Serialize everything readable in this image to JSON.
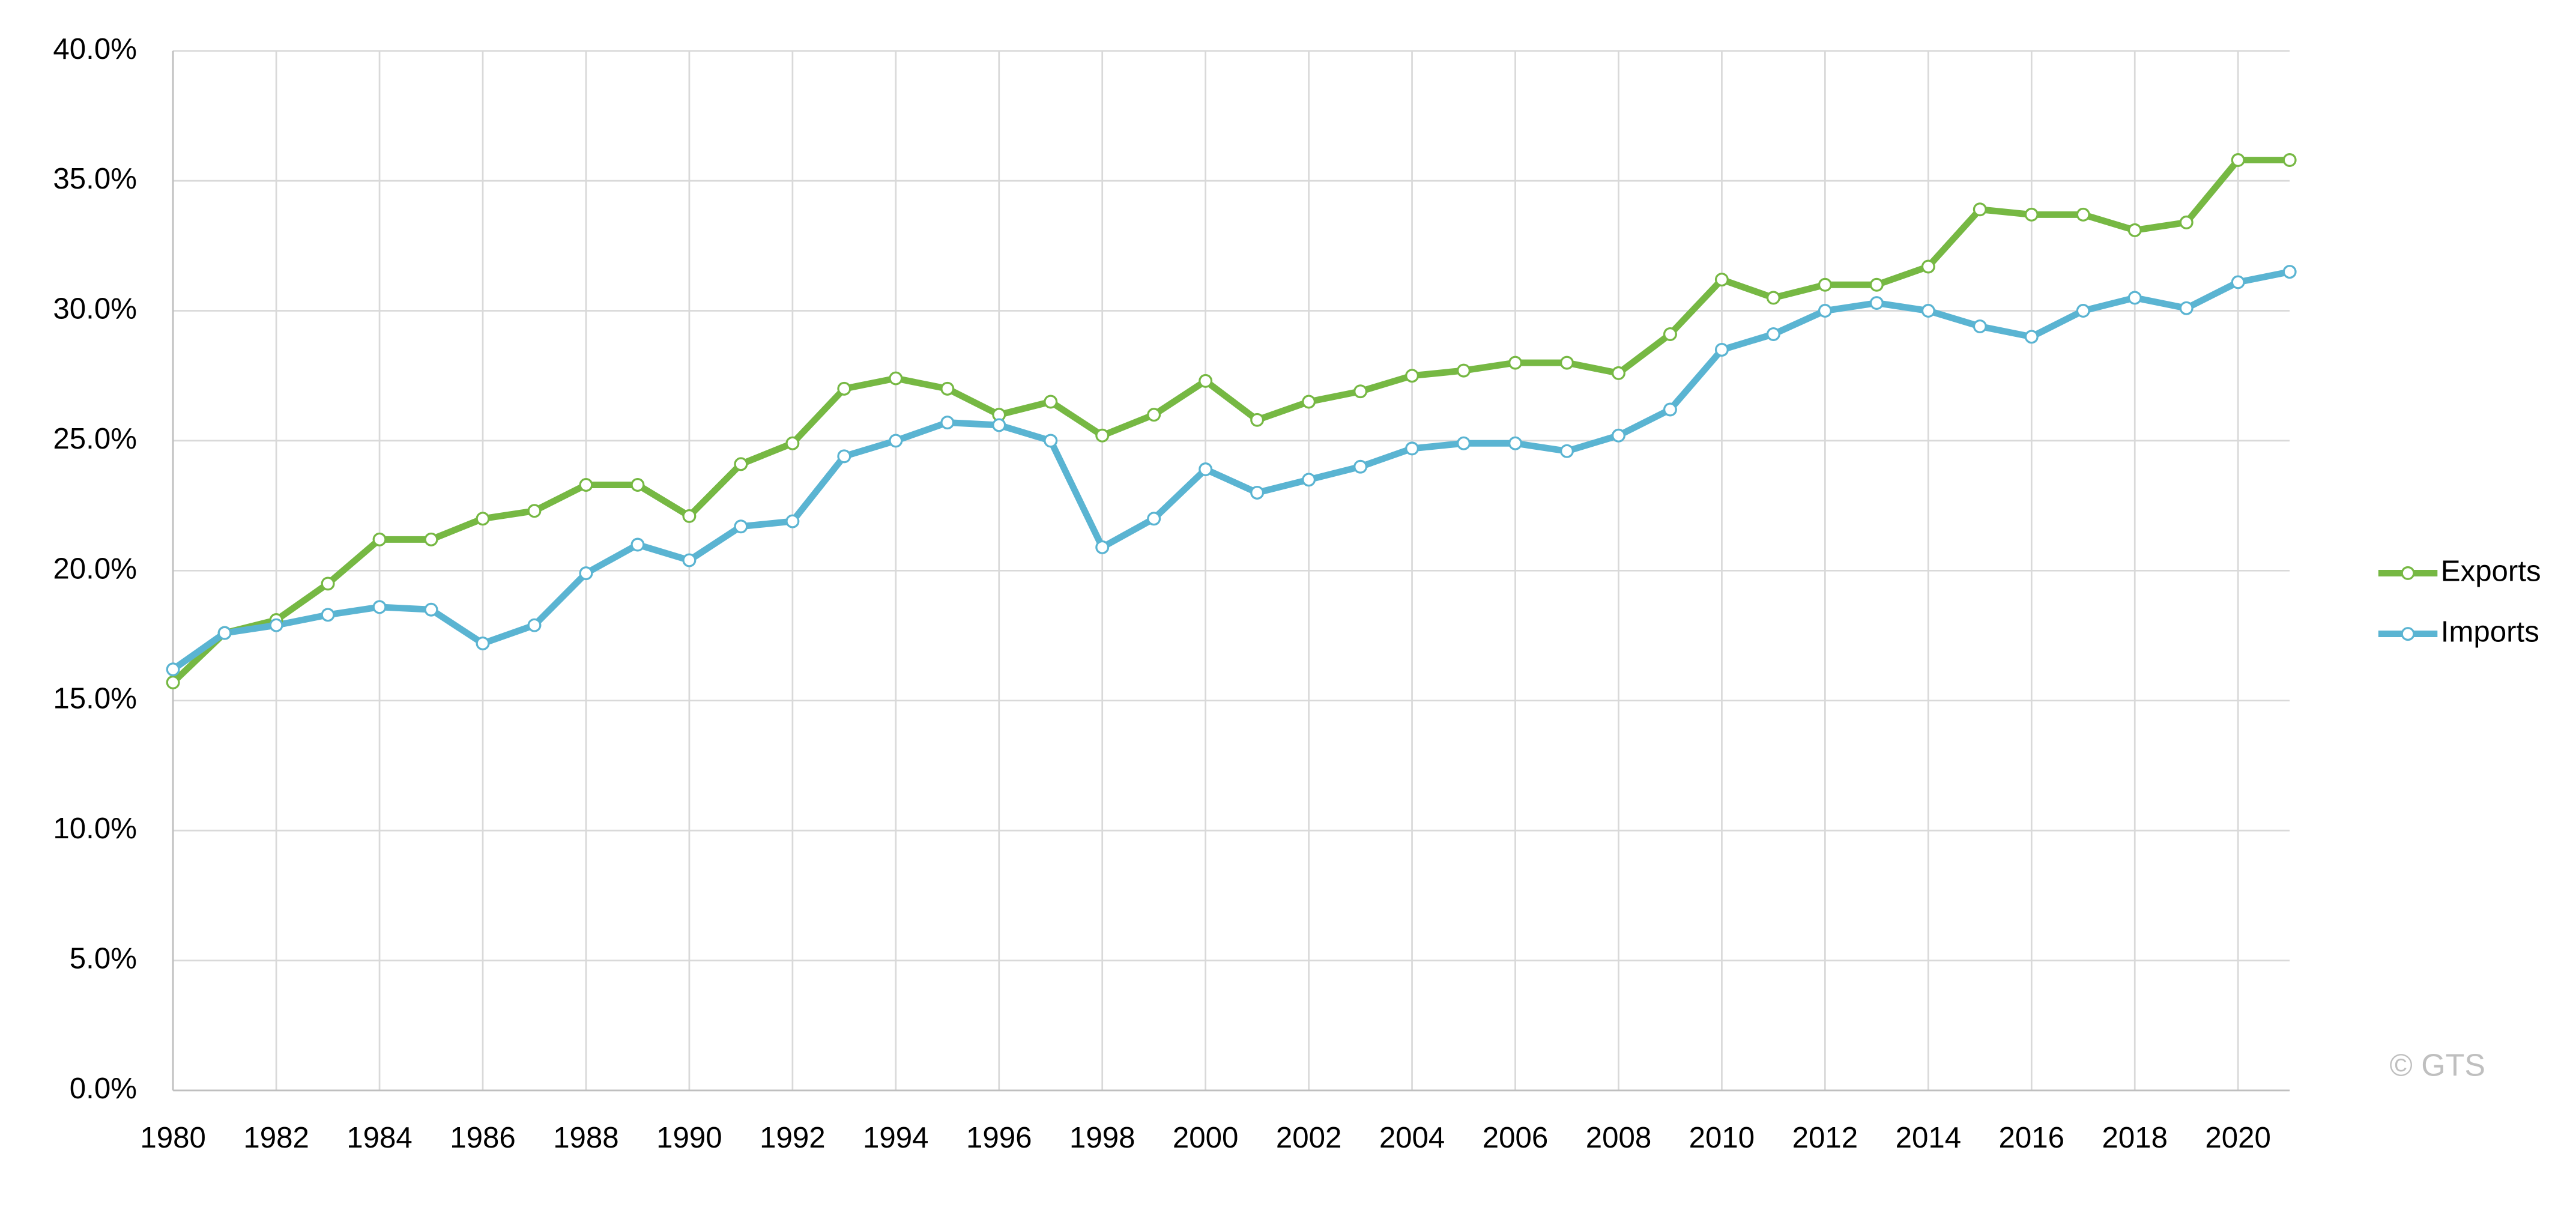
{
  "chart_data": {
    "type": "line",
    "x": [
      1980,
      1981,
      1982,
      1983,
      1984,
      1985,
      1986,
      1987,
      1988,
      1989,
      1990,
      1991,
      1992,
      1993,
      1994,
      1995,
      1996,
      1997,
      1998,
      1999,
      2000,
      2001,
      2002,
      2003,
      2004,
      2005,
      2006,
      2007,
      2008,
      2009,
      2010,
      2011,
      2012,
      2013,
      2014,
      2015,
      2016,
      2017,
      2018,
      2019,
      2020,
      2021
    ],
    "series": [
      {
        "name": "Exports",
        "color": "#76b843",
        "values": [
          15.7,
          17.6,
          18.1,
          19.5,
          21.2,
          21.2,
          22.0,
          22.3,
          23.3,
          23.3,
          22.1,
          24.1,
          24.9,
          27.0,
          27.4,
          27.0,
          26.0,
          26.5,
          25.2,
          26.0,
          27.3,
          25.8,
          26.5,
          26.9,
          27.5,
          27.7,
          28.0,
          28.0,
          27.6,
          29.1,
          31.2,
          30.5,
          31.0,
          31.0,
          31.7,
          33.9,
          33.7,
          33.7,
          33.1,
          33.4,
          35.8,
          35.8
        ]
      },
      {
        "name": "Imports",
        "color": "#5ab4d2",
        "values": [
          16.2,
          17.6,
          17.9,
          18.3,
          18.6,
          18.5,
          17.2,
          17.9,
          19.9,
          21.0,
          20.4,
          21.7,
          21.9,
          24.4,
          25.0,
          25.7,
          25.6,
          25.0,
          20.9,
          22.0,
          23.9,
          23.0,
          23.5,
          24.0,
          24.7,
          24.9,
          24.9,
          24.6,
          25.2,
          26.2,
          28.5,
          29.1,
          30.0,
          30.3,
          30.0,
          29.4,
          29.0,
          30.0,
          30.5,
          30.1,
          31.1,
          31.5
        ]
      }
    ],
    "xlim": [
      1980,
      2021
    ],
    "xticks": [
      1980,
      1982,
      1984,
      1986,
      1988,
      1990,
      1992,
      1994,
      1996,
      1998,
      2000,
      2002,
      2004,
      2006,
      2008,
      2010,
      2012,
      2014,
      2016,
      2018,
      2020
    ],
    "ylim": [
      0,
      40
    ],
    "yticks": [
      {
        "value": 0,
        "label": "0.0%"
      },
      {
        "value": 5,
        "label": "5.0%"
      },
      {
        "value": 10,
        "label": "10.0%"
      },
      {
        "value": 15,
        "label": "15.0%"
      },
      {
        "value": 20,
        "label": "20.0%"
      },
      {
        "value": 25,
        "label": "25.0%"
      },
      {
        "value": 30,
        "label": "30.0%"
      },
      {
        "value": 35,
        "label": "35.0%"
      },
      {
        "value": 40,
        "label": "40.0%"
      }
    ],
    "grid": true,
    "legend": "right",
    "watermark": "© GTS"
  }
}
